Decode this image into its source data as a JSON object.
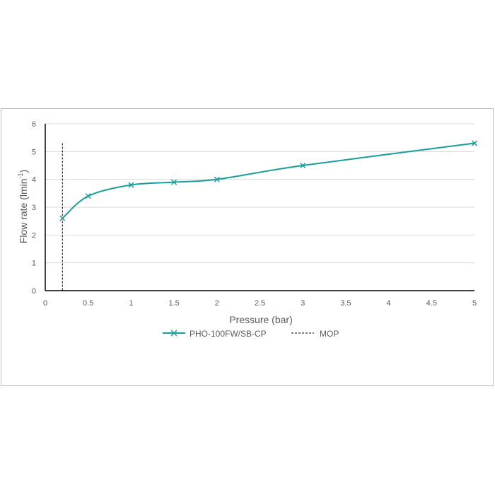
{
  "chart_data": {
    "type": "line",
    "xlabel": "Pressure (bar)",
    "ylabel_main": "Flow rate (lmin",
    "ylabel_sup": "-1",
    "ylabel_close": ")",
    "xlim": [
      0,
      5
    ],
    "ylim": [
      0,
      6
    ],
    "x_ticks": [
      "0",
      "0.5",
      "1",
      "1.5",
      "2",
      "2.5",
      "3",
      "3.5",
      "4",
      "4.5",
      "5"
    ],
    "y_ticks": [
      "0",
      "1",
      "2",
      "3",
      "4",
      "5",
      "6"
    ],
    "grid": "horizontal",
    "legend_position": "bottom",
    "series": [
      {
        "name": "PHO-100FW/SB-CP",
        "color": "#1a9e9b",
        "marker": "x",
        "smooth": true,
        "x": [
          0.2,
          0.5,
          1,
          1.5,
          2,
          3,
          5
        ],
        "y": [
          2.6,
          3.4,
          3.8,
          3.9,
          4.0,
          4.5,
          5.3
        ]
      }
    ],
    "reference_line": {
      "name": "MOP",
      "style": "dashed",
      "color": "#000000",
      "x": 0.2,
      "y_range": [
        0,
        5.3
      ]
    }
  }
}
